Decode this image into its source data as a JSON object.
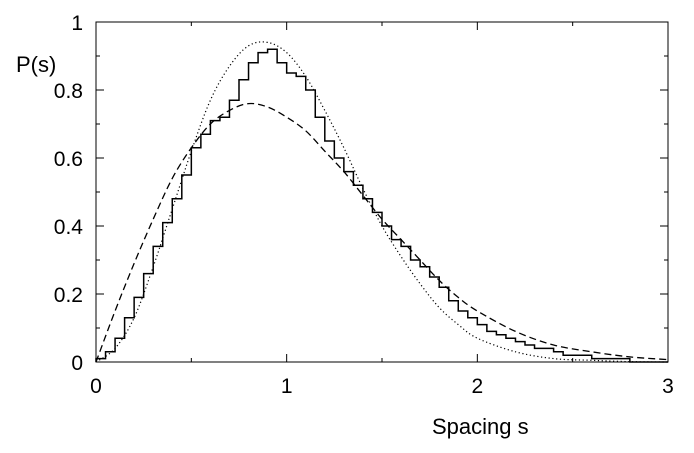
{
  "chart_data": {
    "type": "line",
    "title": "",
    "xlabel": "Spacing s",
    "ylabel": "P(s)",
    "xlim": [
      0,
      3
    ],
    "ylim": [
      0,
      1
    ],
    "x_ticks": [
      "0",
      "1",
      "2",
      "3"
    ],
    "x_tick_values": [
      0,
      1,
      2,
      3
    ],
    "y_ticks": [
      "0",
      "0.2",
      "0.4",
      "0.6",
      "0.8",
      "1"
    ],
    "y_tick_values": [
      0,
      0.2,
      0.4,
      0.6,
      0.8,
      1
    ],
    "grid": false,
    "legend": "none",
    "series": [
      {
        "style": "solid-step",
        "color": "#000000",
        "x": [
          0.0,
          0.05,
          0.1,
          0.15,
          0.2,
          0.25,
          0.3,
          0.35,
          0.4,
          0.45,
          0.5,
          0.55,
          0.6,
          0.65,
          0.7,
          0.75,
          0.8,
          0.85,
          0.9,
          0.95,
          1.0,
          1.05,
          1.1,
          1.15,
          1.2,
          1.25,
          1.3,
          1.35,
          1.4,
          1.45,
          1.5,
          1.55,
          1.6,
          1.65,
          1.7,
          1.75,
          1.8,
          1.85,
          1.9,
          1.95,
          2.0,
          2.05,
          2.1,
          2.15,
          2.2,
          2.25,
          2.3,
          2.35,
          2.4,
          2.45,
          2.5,
          2.55,
          2.6,
          2.65,
          2.7,
          2.75,
          2.8,
          2.85,
          2.9,
          2.95
        ],
        "values": [
          0.01,
          0.03,
          0.07,
          0.13,
          0.19,
          0.26,
          0.34,
          0.41,
          0.48,
          0.55,
          0.63,
          0.67,
          0.71,
          0.72,
          0.77,
          0.83,
          0.88,
          0.91,
          0.92,
          0.88,
          0.85,
          0.84,
          0.8,
          0.72,
          0.65,
          0.6,
          0.56,
          0.52,
          0.48,
          0.44,
          0.4,
          0.36,
          0.34,
          0.3,
          0.28,
          0.25,
          0.22,
          0.18,
          0.15,
          0.13,
          0.11,
          0.09,
          0.08,
          0.07,
          0.06,
          0.05,
          0.04,
          0.04,
          0.03,
          0.02,
          0.02,
          0.02,
          0.01,
          0.01,
          0.01,
          0.01,
          0.0,
          0.0,
          0.0,
          0.0
        ]
      },
      {
        "style": "dotted",
        "color": "#000000",
        "x": [
          0.0,
          0.1,
          0.2,
          0.3,
          0.4,
          0.5,
          0.6,
          0.7,
          0.8,
          0.9,
          1.0,
          1.1,
          1.2,
          1.3,
          1.4,
          1.5,
          1.6,
          1.7,
          1.8,
          1.9,
          2.0,
          2.2,
          2.4,
          2.6,
          2.8,
          3.0
        ],
        "values": [
          0.0,
          0.04,
          0.13,
          0.28,
          0.45,
          0.62,
          0.77,
          0.87,
          0.93,
          0.94,
          0.91,
          0.84,
          0.74,
          0.63,
          0.51,
          0.4,
          0.31,
          0.23,
          0.16,
          0.11,
          0.07,
          0.03,
          0.01,
          0.005,
          0.001,
          0.0
        ]
      },
      {
        "style": "dashed",
        "color": "#000000",
        "x": [
          0.0,
          0.1,
          0.2,
          0.3,
          0.4,
          0.5,
          0.6,
          0.7,
          0.8,
          0.9,
          1.0,
          1.1,
          1.2,
          1.3,
          1.4,
          1.5,
          1.6,
          1.7,
          1.8,
          1.9,
          2.0,
          2.2,
          2.4,
          2.6,
          2.8,
          3.0
        ],
        "values": [
          0.0,
          0.15,
          0.29,
          0.42,
          0.54,
          0.63,
          0.7,
          0.74,
          0.76,
          0.75,
          0.72,
          0.68,
          0.62,
          0.56,
          0.49,
          0.42,
          0.36,
          0.3,
          0.24,
          0.19,
          0.15,
          0.09,
          0.05,
          0.03,
          0.015,
          0.007
        ]
      }
    ]
  }
}
